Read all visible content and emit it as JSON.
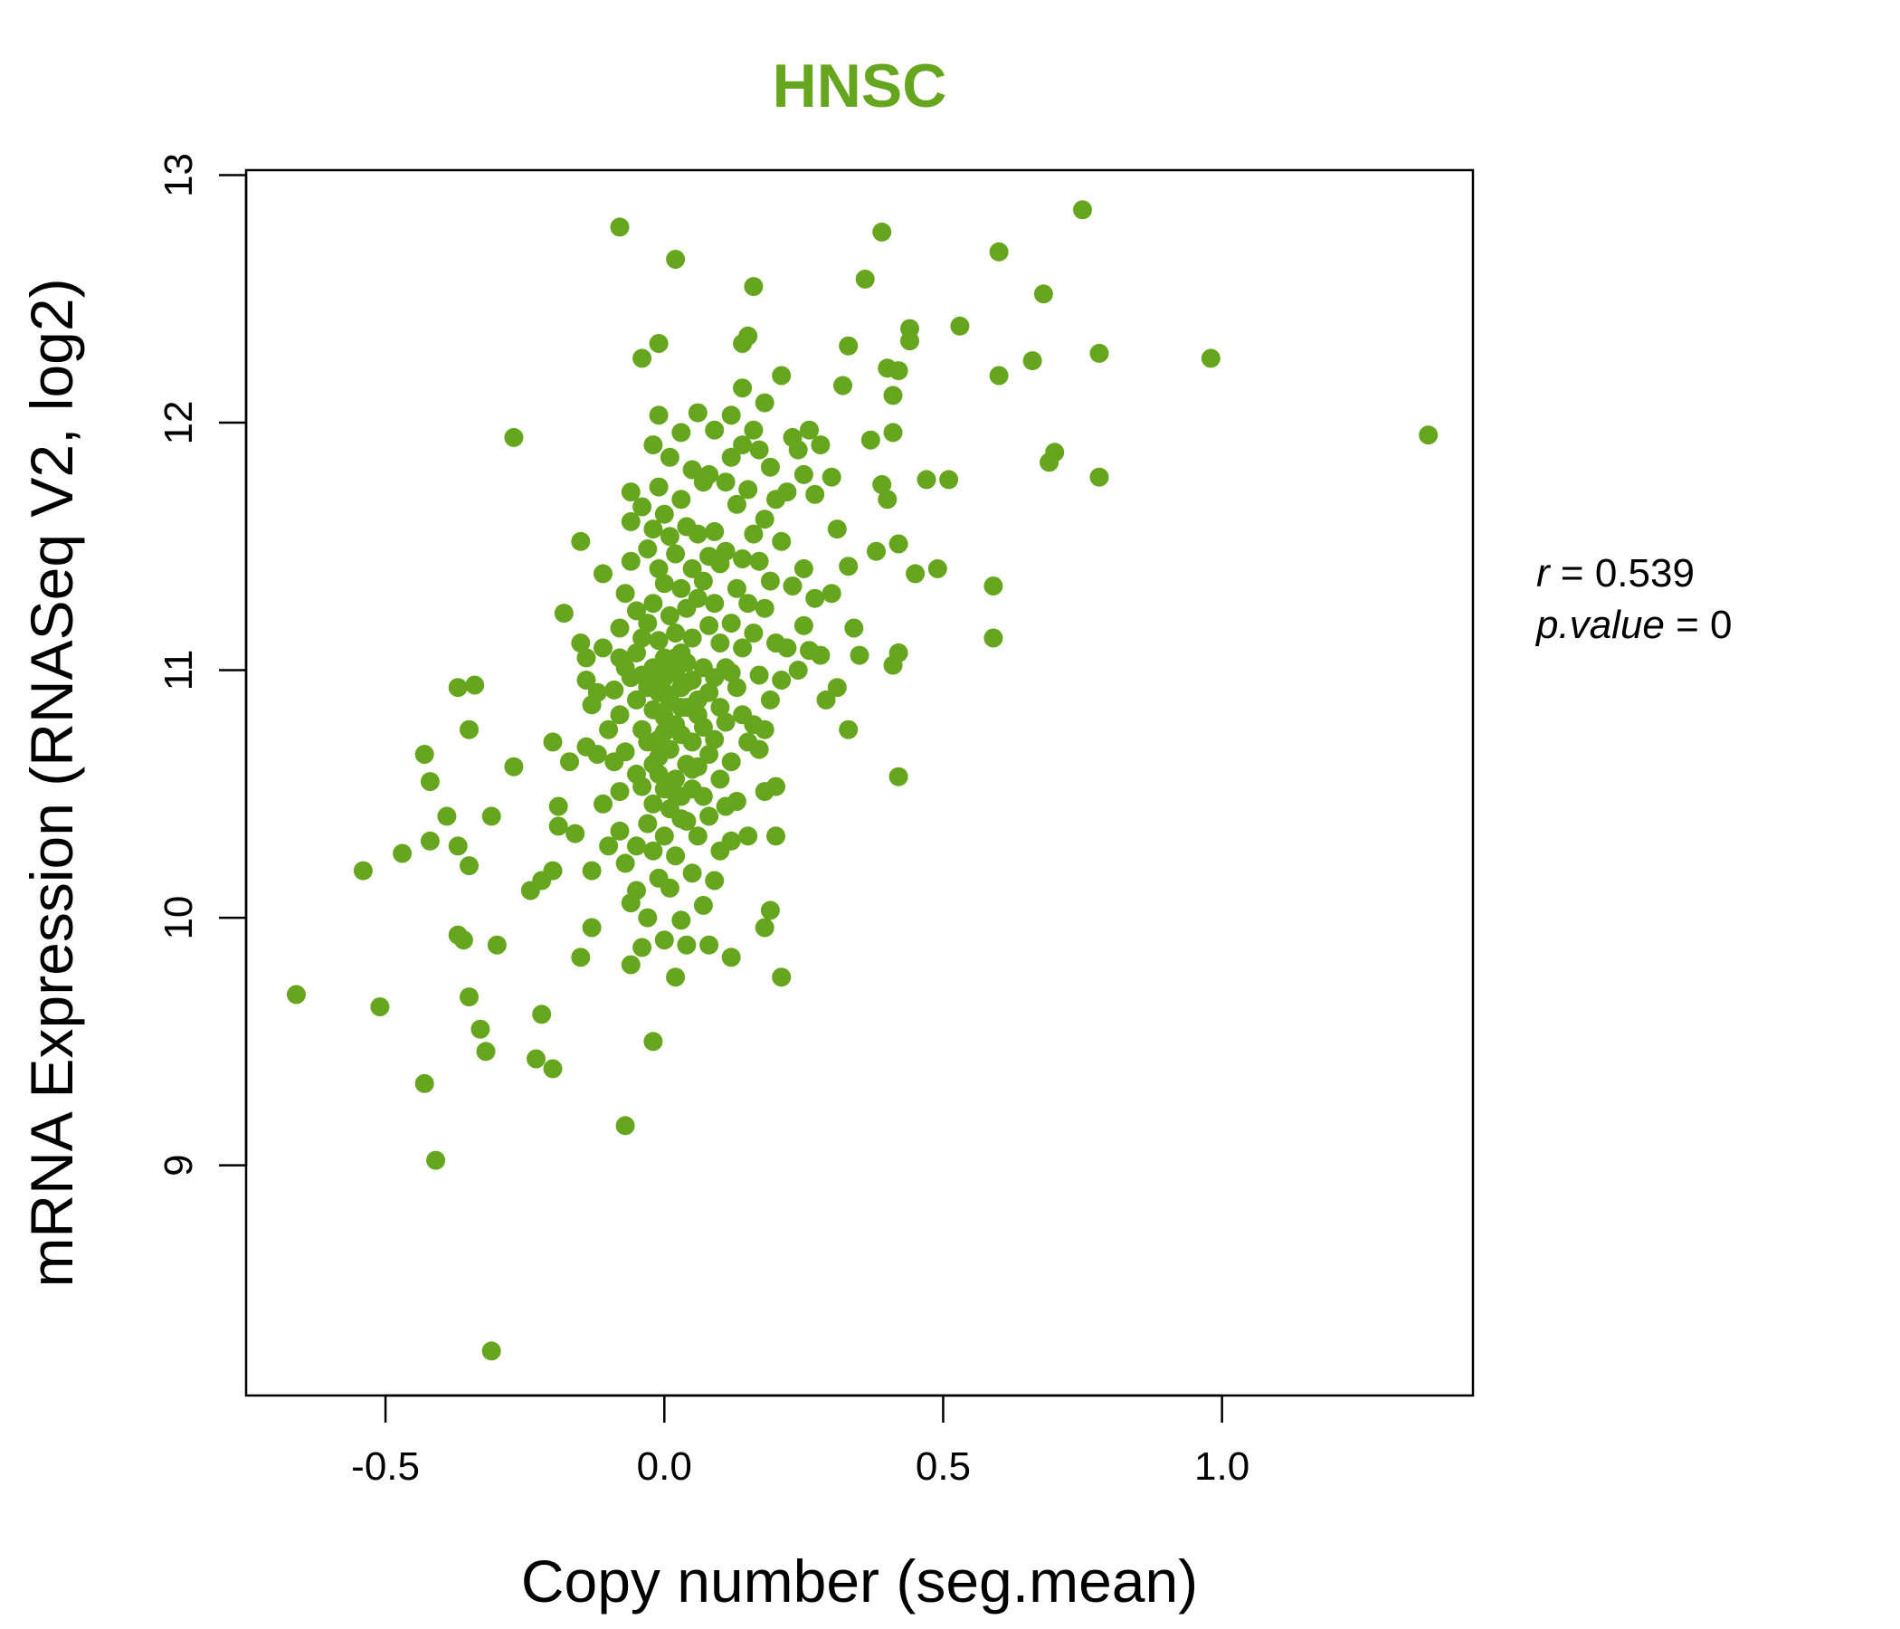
{
  "chart_data": {
    "type": "scatter",
    "title": "HNSC",
    "xlabel": "Copy number (seg.mean)",
    "ylabel": "mRNA Expression (RNASeq V2, log2)",
    "xlim": [
      -0.75,
      1.45
    ],
    "ylim": [
      8.07,
      13.02
    ],
    "x_ticks": [
      "-0.5",
      "0.0",
      "0.5",
      "1.0"
    ],
    "x_tick_values": [
      -0.5,
      0.0,
      0.5,
      1.0
    ],
    "y_ticks": [
      "9",
      "10",
      "11",
      "12",
      "13"
    ],
    "y_tick_values": [
      9,
      10,
      11,
      12,
      13
    ],
    "grid": false,
    "stats": {
      "r_label": "r",
      "r_value": "0.539",
      "p_label": "p.value",
      "p_value": "0"
    },
    "colors": {
      "points": "#66a61e",
      "title": "#66a61e",
      "axes": "#000000"
    },
    "series": [
      {
        "points": [
          [
            -0.66,
            9.69
          ],
          [
            -0.54,
            10.19
          ],
          [
            -0.51,
            9.64
          ],
          [
            -0.47,
            10.26
          ],
          [
            -0.43,
            10.66
          ],
          [
            -0.42,
            10.55
          ],
          [
            -0.42,
            10.31
          ],
          [
            -0.43,
            9.33
          ],
          [
            -0.41,
            9.02
          ],
          [
            -0.39,
            10.41
          ],
          [
            -0.37,
            10.93
          ],
          [
            -0.37,
            10.29
          ],
          [
            -0.37,
            9.93
          ],
          [
            -0.36,
            9.91
          ],
          [
            -0.35,
            10.76
          ],
          [
            -0.35,
            10.21
          ],
          [
            -0.35,
            9.68
          ],
          [
            -0.34,
            10.94
          ],
          [
            -0.33,
            9.55
          ],
          [
            -0.32,
            9.46
          ],
          [
            -0.31,
            10.41
          ],
          [
            -0.3,
            9.89
          ],
          [
            -0.31,
            8.25
          ],
          [
            -0.27,
            11.94
          ],
          [
            -0.27,
            10.61
          ],
          [
            -0.24,
            10.11
          ],
          [
            -0.23,
            9.43
          ],
          [
            -0.22,
            10.15
          ],
          [
            -0.22,
            9.61
          ],
          [
            -0.2,
            10.19
          ],
          [
            -0.2,
            9.39
          ],
          [
            -0.2,
            10.71
          ],
          [
            -0.19,
            10.45
          ],
          [
            -0.19,
            10.37
          ],
          [
            -0.18,
            11.23
          ],
          [
            -0.17,
            10.63
          ],
          [
            -0.16,
            10.34
          ],
          [
            -0.15,
            11.11
          ],
          [
            -0.14,
            11.05
          ],
          [
            -0.14,
            10.96
          ],
          [
            -0.14,
            10.69
          ],
          [
            -0.15,
            11.52
          ],
          [
            -0.13,
            10.86
          ],
          [
            -0.13,
            10.19
          ],
          [
            -0.13,
            9.96
          ],
          [
            -0.15,
            9.84
          ],
          [
            -0.12,
            10.91
          ],
          [
            -0.12,
            10.66
          ],
          [
            -0.11,
            11.39
          ],
          [
            -0.11,
            11.09
          ],
          [
            -0.11,
            10.46
          ],
          [
            -0.1,
            10.29
          ],
          [
            -0.1,
            10.76
          ],
          [
            -0.09,
            10.92
          ],
          [
            -0.09,
            10.63
          ],
          [
            -0.08,
            11.17
          ],
          [
            -0.08,
            11.05
          ],
          [
            -0.08,
            10.82
          ],
          [
            -0.08,
            10.51
          ],
          [
            -0.08,
            10.35
          ],
          [
            -0.08,
            12.79
          ],
          [
            -0.07,
            11.31
          ],
          [
            -0.07,
            11.01
          ],
          [
            -0.07,
            10.67
          ],
          [
            -0.07,
            10.22
          ],
          [
            -0.07,
            9.16
          ],
          [
            -0.06,
            11.72
          ],
          [
            -0.06,
            11.6
          ],
          [
            -0.06,
            11.44
          ],
          [
            -0.06,
            10.97
          ],
          [
            -0.06,
            10.06
          ],
          [
            -0.06,
            9.81
          ],
          [
            -0.05,
            11.24
          ],
          [
            -0.05,
            11.07
          ],
          [
            -0.05,
            10.88
          ],
          [
            -0.05,
            10.58
          ],
          [
            -0.05,
            10.29
          ],
          [
            -0.05,
            10.11
          ],
          [
            -0.04,
            12.26
          ],
          [
            -0.04,
            11.66
          ],
          [
            -0.04,
            11.13
          ],
          [
            -0.04,
            10.98
          ],
          [
            -0.04,
            10.76
          ],
          [
            -0.04,
            10.53
          ],
          [
            -0.04,
            9.88
          ],
          [
            -0.03,
            11.49
          ],
          [
            -0.03,
            11.19
          ],
          [
            -0.03,
            10.93
          ],
          [
            -0.03,
            10.71
          ],
          [
            -0.03,
            10.38
          ],
          [
            -0.03,
            10.0
          ],
          [
            -0.02,
            11.91
          ],
          [
            -0.02,
            11.57
          ],
          [
            -0.02,
            11.27
          ],
          [
            -0.02,
            11.01
          ],
          [
            -0.02,
            10.84
          ],
          [
            -0.02,
            10.62
          ],
          [
            -0.02,
            10.46
          ],
          [
            -0.02,
            10.27
          ],
          [
            -0.02,
            9.5
          ],
          [
            -0.01,
            12.32
          ],
          [
            -0.01,
            12.03
          ],
          [
            -0.01,
            11.74
          ],
          [
            -0.01,
            11.41
          ],
          [
            -0.01,
            11.12
          ],
          [
            -0.01,
            10.91
          ],
          [
            -0.01,
            10.72
          ],
          [
            -0.01,
            10.58
          ],
          [
            -0.01,
            10.16
          ],
          [
            0.0,
            11.63
          ],
          [
            0.0,
            11.35
          ],
          [
            0.0,
            11.05
          ],
          [
            0.0,
            10.97
          ],
          [
            0.0,
            10.81
          ],
          [
            0.0,
            10.52
          ],
          [
            0.0,
            10.33
          ],
          [
            0.0,
            9.91
          ],
          [
            0.01,
            11.86
          ],
          [
            0.01,
            11.54
          ],
          [
            0.01,
            11.22
          ],
          [
            0.01,
            11.02
          ],
          [
            0.01,
            10.87
          ],
          [
            0.01,
            10.68
          ],
          [
            0.01,
            10.44
          ],
          [
            0.01,
            10.12
          ],
          [
            0.02,
            12.66
          ],
          [
            0.02,
            11.47
          ],
          [
            0.02,
            11.15
          ],
          [
            0.02,
            10.99
          ],
          [
            0.02,
            10.78
          ],
          [
            0.02,
            10.56
          ],
          [
            0.02,
            10.25
          ],
          [
            0.02,
            9.76
          ],
          [
            0.03,
            11.96
          ],
          [
            0.03,
            11.69
          ],
          [
            0.03,
            11.33
          ],
          [
            0.03,
            11.07
          ],
          [
            0.03,
            10.93
          ],
          [
            0.03,
            10.74
          ],
          [
            0.03,
            10.49
          ],
          [
            0.03,
            9.99
          ],
          [
            0.04,
            11.58
          ],
          [
            0.04,
            11.25
          ],
          [
            0.04,
            11.03
          ],
          [
            0.04,
            10.85
          ],
          [
            0.04,
            10.62
          ],
          [
            0.04,
            10.39
          ],
          [
            0.04,
            9.89
          ],
          [
            0.05,
            11.81
          ],
          [
            0.05,
            11.41
          ],
          [
            0.05,
            11.13
          ],
          [
            0.05,
            10.96
          ],
          [
            0.05,
            10.71
          ],
          [
            0.05,
            10.52
          ],
          [
            0.05,
            10.18
          ],
          [
            0.06,
            12.04
          ],
          [
            0.06,
            11.55
          ],
          [
            0.06,
            11.29
          ],
          [
            0.06,
            10.88
          ],
          [
            0.06,
            10.61
          ],
          [
            0.06,
            10.33
          ],
          [
            0.07,
            11.76
          ],
          [
            0.07,
            11.36
          ],
          [
            0.07,
            11.01
          ],
          [
            0.07,
            10.77
          ],
          [
            0.07,
            10.49
          ],
          [
            0.07,
            10.05
          ],
          [
            0.08,
            11.79
          ],
          [
            0.08,
            11.46
          ],
          [
            0.08,
            11.18
          ],
          [
            0.08,
            10.91
          ],
          [
            0.08,
            10.66
          ],
          [
            0.08,
            10.41
          ],
          [
            0.08,
            9.89
          ],
          [
            0.09,
            11.97
          ],
          [
            0.09,
            11.56
          ],
          [
            0.09,
            11.27
          ],
          [
            0.09,
            10.97
          ],
          [
            0.09,
            10.72
          ],
          [
            0.09,
            10.15
          ],
          [
            0.1,
            11.43
          ],
          [
            0.1,
            11.11
          ],
          [
            0.1,
            10.85
          ],
          [
            0.1,
            10.56
          ],
          [
            0.1,
            10.27
          ],
          [
            0.11,
            11.76
          ],
          [
            0.11,
            11.48
          ],
          [
            0.11,
            11.01
          ],
          [
            0.11,
            10.79
          ],
          [
            0.11,
            10.45
          ],
          [
            0.12,
            12.03
          ],
          [
            0.12,
            11.86
          ],
          [
            0.12,
            11.19
          ],
          [
            0.12,
            10.99
          ],
          [
            0.12,
            10.63
          ],
          [
            0.12,
            10.31
          ],
          [
            0.12,
            9.84
          ],
          [
            0.13,
            11.67
          ],
          [
            0.13,
            11.33
          ],
          [
            0.13,
            10.93
          ],
          [
            0.13,
            10.47
          ],
          [
            0.14,
            12.32
          ],
          [
            0.14,
            12.14
          ],
          [
            0.14,
            11.91
          ],
          [
            0.14,
            11.45
          ],
          [
            0.14,
            11.09
          ],
          [
            0.14,
            10.82
          ],
          [
            0.15,
            12.35
          ],
          [
            0.15,
            11.73
          ],
          [
            0.15,
            11.27
          ],
          [
            0.15,
            10.71
          ],
          [
            0.15,
            10.33
          ],
          [
            0.16,
            11.97
          ],
          [
            0.16,
            11.55
          ],
          [
            0.16,
            11.15
          ],
          [
            0.16,
            10.78
          ],
          [
            0.16,
            12.55
          ],
          [
            0.17,
            11.89
          ],
          [
            0.17,
            11.44
          ],
          [
            0.17,
            10.98
          ],
          [
            0.17,
            10.68
          ],
          [
            0.18,
            12.08
          ],
          [
            0.18,
            11.61
          ],
          [
            0.18,
            11.25
          ],
          [
            0.18,
            10.76
          ],
          [
            0.18,
            10.51
          ],
          [
            0.18,
            9.96
          ],
          [
            0.19,
            11.82
          ],
          [
            0.19,
            11.36
          ],
          [
            0.19,
            10.88
          ],
          [
            0.19,
            10.03
          ],
          [
            0.2,
            11.69
          ],
          [
            0.2,
            11.11
          ],
          [
            0.2,
            10.53
          ],
          [
            0.2,
            10.33
          ],
          [
            0.21,
            12.19
          ],
          [
            0.21,
            11.52
          ],
          [
            0.21,
            10.96
          ],
          [
            0.21,
            9.76
          ],
          [
            0.22,
            11.72
          ],
          [
            0.22,
            11.09
          ],
          [
            0.23,
            11.94
          ],
          [
            0.23,
            11.34
          ],
          [
            0.24,
            11.89
          ],
          [
            0.24,
            11.0
          ],
          [
            0.25,
            11.79
          ],
          [
            0.25,
            11.41
          ],
          [
            0.25,
            11.18
          ],
          [
            0.26,
            11.97
          ],
          [
            0.26,
            11.08
          ],
          [
            0.27,
            11.71
          ],
          [
            0.27,
            11.29
          ],
          [
            0.28,
            11.91
          ],
          [
            0.28,
            11.06
          ],
          [
            0.29,
            10.88
          ],
          [
            0.3,
            11.78
          ],
          [
            0.3,
            11.31
          ],
          [
            0.31,
            11.57
          ],
          [
            0.31,
            10.93
          ],
          [
            0.32,
            12.15
          ],
          [
            0.33,
            12.31
          ],
          [
            0.33,
            11.42
          ],
          [
            0.33,
            10.76
          ],
          [
            0.34,
            11.17
          ],
          [
            0.35,
            11.06
          ],
          [
            0.36,
            12.58
          ],
          [
            0.37,
            11.93
          ],
          [
            0.38,
            11.48
          ],
          [
            0.39,
            11.75
          ],
          [
            0.39,
            12.77
          ],
          [
            0.4,
            11.69
          ],
          [
            0.4,
            12.22
          ],
          [
            0.41,
            11.02
          ],
          [
            0.41,
            11.96
          ],
          [
            0.41,
            12.11
          ],
          [
            0.42,
            11.51
          ],
          [
            0.42,
            12.21
          ],
          [
            0.42,
            10.57
          ],
          [
            0.42,
            11.07
          ],
          [
            0.44,
            12.38
          ],
          [
            0.44,
            12.33
          ],
          [
            0.45,
            11.39
          ],
          [
            0.47,
            11.77
          ],
          [
            0.49,
            11.41
          ],
          [
            0.51,
            11.77
          ],
          [
            0.53,
            12.39
          ],
          [
            0.59,
            11.34
          ],
          [
            0.59,
            11.13
          ],
          [
            0.6,
            12.69
          ],
          [
            0.6,
            12.19
          ],
          [
            0.66,
            12.25
          ],
          [
            0.68,
            12.52
          ],
          [
            0.69,
            11.84
          ],
          [
            0.7,
            11.88
          ],
          [
            0.75,
            12.86
          ],
          [
            0.78,
            12.28
          ],
          [
            0.78,
            11.78
          ],
          [
            0.98,
            12.26
          ],
          [
            1.37,
            11.95
          ],
          [
            -0.02,
            10.95
          ],
          [
            0.0,
            11.0
          ],
          [
            0.01,
            10.9
          ],
          [
            0.02,
            11.05
          ],
          [
            0.03,
            10.85
          ],
          [
            0.04,
            10.95
          ],
          [
            -0.01,
            10.65
          ],
          [
            0.02,
            10.5
          ],
          [
            0.05,
            10.6
          ],
          [
            0.03,
            10.4
          ],
          [
            0.0,
            10.75
          ],
          [
            0.06,
            10.82
          ]
        ]
      }
    ]
  }
}
